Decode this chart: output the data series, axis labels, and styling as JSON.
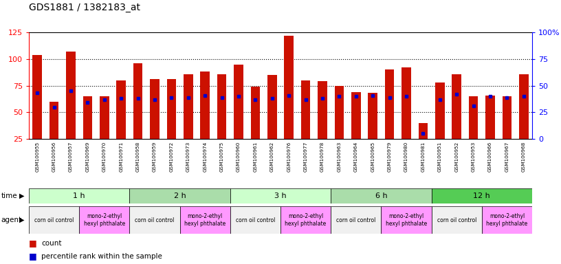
{
  "title": "GDS1881 / 1382183_at",
  "samples": [
    "GSM100955",
    "GSM100956",
    "GSM100957",
    "GSM100969",
    "GSM100970",
    "GSM100971",
    "GSM100958",
    "GSM100959",
    "GSM100972",
    "GSM100973",
    "GSM100974",
    "GSM100975",
    "GSM100960",
    "GSM100961",
    "GSM100962",
    "GSM100976",
    "GSM100977",
    "GSM100978",
    "GSM100963",
    "GSM100964",
    "GSM100965",
    "GSM100979",
    "GSM100980",
    "GSM100981",
    "GSM100951",
    "GSM100952",
    "GSM100953",
    "GSM100966",
    "GSM100967",
    "GSM100968"
  ],
  "counts": [
    104,
    60,
    107,
    65,
    65,
    80,
    96,
    81,
    81,
    86,
    88,
    86,
    95,
    74,
    85,
    122,
    80,
    79,
    75,
    69,
    68,
    90,
    92,
    40,
    78,
    86,
    65,
    66,
    65,
    86
  ],
  "percentiles": [
    68,
    55,
    70,
    59,
    62,
    63,
    63,
    62,
    64,
    64,
    66,
    64,
    65,
    62,
    63,
    66,
    62,
    63,
    65,
    65,
    66,
    64,
    65,
    30,
    62,
    67,
    56,
    65,
    64,
    65
  ],
  "time_groups": [
    {
      "label": "1 h",
      "start": 0,
      "end": 6
    },
    {
      "label": "2 h",
      "start": 6,
      "end": 12
    },
    {
      "label": "3 h",
      "start": 12,
      "end": 18
    },
    {
      "label": "6 h",
      "start": 18,
      "end": 24
    },
    {
      "label": "12 h",
      "start": 24,
      "end": 30
    }
  ],
  "agent_groups": [
    {
      "label": "corn oil control",
      "start": 0,
      "end": 3,
      "color": "#f0f0f0"
    },
    {
      "label": "mono-2-ethyl\nhexyl phthalate",
      "start": 3,
      "end": 6,
      "color": "#ff99ff"
    },
    {
      "label": "corn oil control",
      "start": 6,
      "end": 9,
      "color": "#f0f0f0"
    },
    {
      "label": "mono-2-ethyl\nhexyl phthalate",
      "start": 9,
      "end": 12,
      "color": "#ff99ff"
    },
    {
      "label": "corn oil control",
      "start": 12,
      "end": 15,
      "color": "#f0f0f0"
    },
    {
      "label": "mono-2-ethyl\nhexyl phthalate",
      "start": 15,
      "end": 18,
      "color": "#ff99ff"
    },
    {
      "label": "corn oil control",
      "start": 18,
      "end": 21,
      "color": "#f0f0f0"
    },
    {
      "label": "mono-2-ethyl\nhexyl phthalate",
      "start": 21,
      "end": 24,
      "color": "#ff99ff"
    },
    {
      "label": "corn oil control",
      "start": 24,
      "end": 27,
      "color": "#f0f0f0"
    },
    {
      "label": "mono-2-ethyl\nhexyl phthalate",
      "start": 27,
      "end": 30,
      "color": "#ff99ff"
    }
  ],
  "time_colors": [
    "#ccffcc",
    "#aaddaa",
    "#ccffcc",
    "#aaddaa",
    "#55cc55"
  ],
  "bar_color": "#cc1100",
  "percentile_color": "#0000cc",
  "ylim_left": [
    25,
    125
  ],
  "ylim_right": [
    0,
    100
  ],
  "yticks_left": [
    25,
    50,
    75,
    100,
    125
  ],
  "ytick_labels_left": [
    "25",
    "50",
    "75",
    "100",
    "125"
  ],
  "yticks_right_vals": [
    25,
    50,
    75,
    100,
    125
  ],
  "ytick_labels_right": [
    "0",
    "25",
    "50",
    "75",
    "100%"
  ],
  "bar_bottom": 25,
  "bar_width": 0.55
}
